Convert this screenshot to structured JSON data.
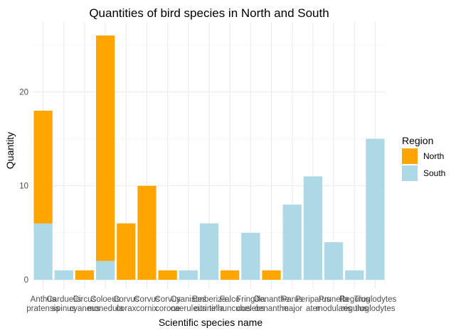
{
  "chart_data": {
    "type": "bar",
    "stacked": true,
    "title": "Quantities of bird species in North and South",
    "xlabel": "Scientific species name",
    "ylabel": "Quantity",
    "ylim": [
      0,
      26.5
    ],
    "yticks": [
      0,
      10,
      20
    ],
    "grid": true,
    "legend": {
      "title": "Region",
      "placement": "right"
    },
    "categories": [
      [
        "Anthus",
        "pratensis"
      ],
      [
        "Carduelis",
        "spinus"
      ],
      [
        "Circus",
        "cyaneus"
      ],
      [
        "Coloeus",
        "monedula"
      ],
      [
        "Corvus",
        "corax"
      ],
      [
        "Corvus",
        "cornix"
      ],
      [
        "Corvus",
        "corone"
      ],
      [
        "Cyanistes",
        "caeruleus"
      ],
      [
        "Emberiza",
        "citrinella"
      ],
      [
        "Falco",
        "tinnunculus"
      ],
      [
        "Fringilla",
        "coelebs"
      ],
      [
        "Oenanthe",
        "oenanthe"
      ],
      [
        "Parus",
        "major"
      ],
      [
        "Periparus",
        "ater"
      ],
      [
        "Prunella",
        "modularis"
      ],
      [
        "Regulus",
        "regulus"
      ],
      [
        "Troglodytes",
        "troglodytes"
      ]
    ],
    "series": [
      {
        "name": "South",
        "color": "#add8e6",
        "values": [
          6,
          1,
          0,
          2,
          0,
          0,
          0,
          1,
          6,
          0,
          5,
          0,
          8,
          11,
          4,
          1,
          15
        ]
      },
      {
        "name": "North",
        "color": "#ffa500",
        "values": [
          12,
          0,
          1,
          24,
          6,
          10,
          1,
          0,
          0,
          1,
          0,
          1,
          0,
          0,
          0,
          0,
          0
        ]
      }
    ],
    "legend_order": [
      "North",
      "South"
    ]
  }
}
